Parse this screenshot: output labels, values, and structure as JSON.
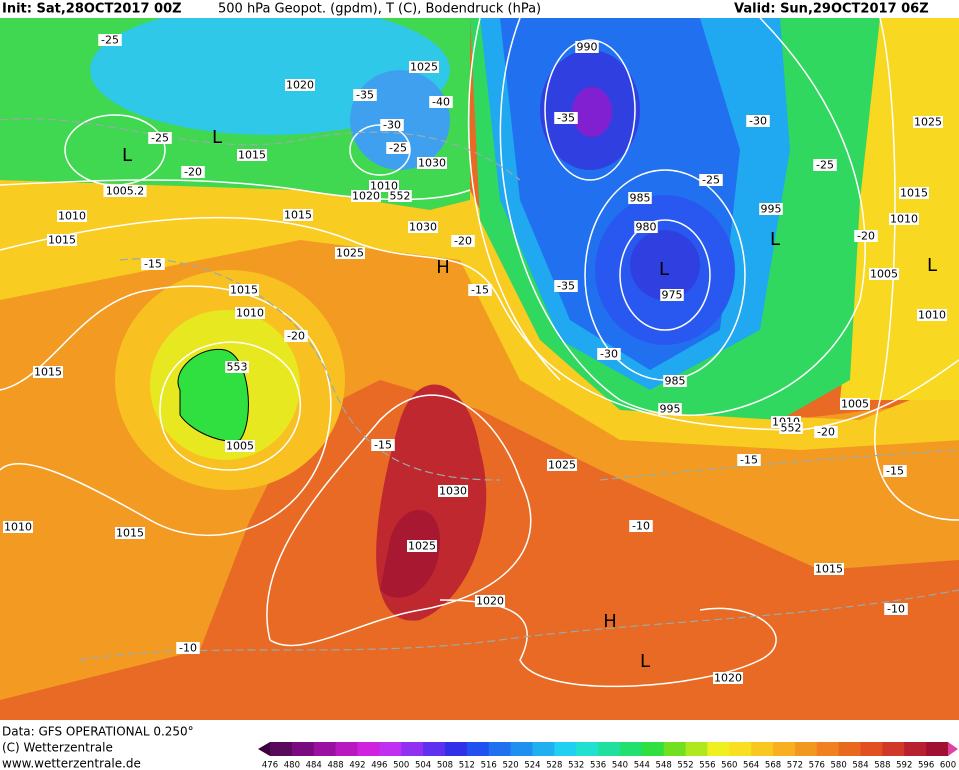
{
  "header": {
    "init": "Init: Sat,28OCT2017 00Z",
    "title": "500 hPa Geopot. (gpdm), T (C), Bodendruck (hPa)",
    "valid": "Valid: Sun,29OCT2017 06Z"
  },
  "map": {
    "labels": [
      "-25",
      "1020",
      "-35",
      "1025",
      "-40",
      "-30",
      "-25",
      "L",
      "L",
      "1015",
      "-25",
      "1030",
      "-20",
      "1010",
      "1005.2",
      "1020",
      "552",
      "1010",
      "1015",
      "1030",
      "-20",
      "1015",
      "1025",
      "H",
      "-15",
      "-15",
      "1015",
      "1010",
      "-20",
      "553",
      "1015",
      "-15",
      "1005",
      "1030",
      "1025",
      "1010",
      "1015",
      "1020",
      "H",
      "-10",
      "L",
      "1020",
      "1025",
      "-10",
      "-15",
      "995",
      "985",
      "-30",
      "975",
      "L",
      "980",
      "985",
      "-35",
      "-35",
      "990",
      "-30",
      "-25",
      "-25",
      "995",
      "L",
      "1025",
      "1015",
      "1010",
      "-20",
      "1005",
      "L",
      "1010",
      "1005",
      "1010",
      "552",
      "-20",
      "-15",
      "1015",
      "-10"
    ]
  },
  "legend": {
    "ticks": [
      476,
      480,
      484,
      488,
      492,
      496,
      500,
      504,
      508,
      512,
      516,
      520,
      524,
      528,
      532,
      536,
      540,
      544,
      548,
      552,
      556,
      560,
      564,
      568,
      572,
      576,
      580,
      584,
      588,
      592,
      596,
      600
    ],
    "colors": [
      "#5a0a5a",
      "#7a0a80",
      "#9a10a0",
      "#b818c0",
      "#d020e0",
      "#c030f0",
      "#9030f0",
      "#6030f0",
      "#3030e8",
      "#2050f0",
      "#2070f0",
      "#2090f0",
      "#20b0f0",
      "#20d0f0",
      "#20e0d0",
      "#20e0a0",
      "#20e070",
      "#30e040",
      "#70e020",
      "#b0e820",
      "#f0f020",
      "#f8e020",
      "#f8c820",
      "#f8b020",
      "#f09820",
      "#f08020",
      "#e86820",
      "#e05020",
      "#d03828",
      "#b82030",
      "#a01030"
    ]
  },
  "footer": {
    "source": "Data: GFS OPERATIONAL 0.250°",
    "copyright": "(C) Wetterzentrale",
    "url": "www.wetterzentrale.de"
  }
}
